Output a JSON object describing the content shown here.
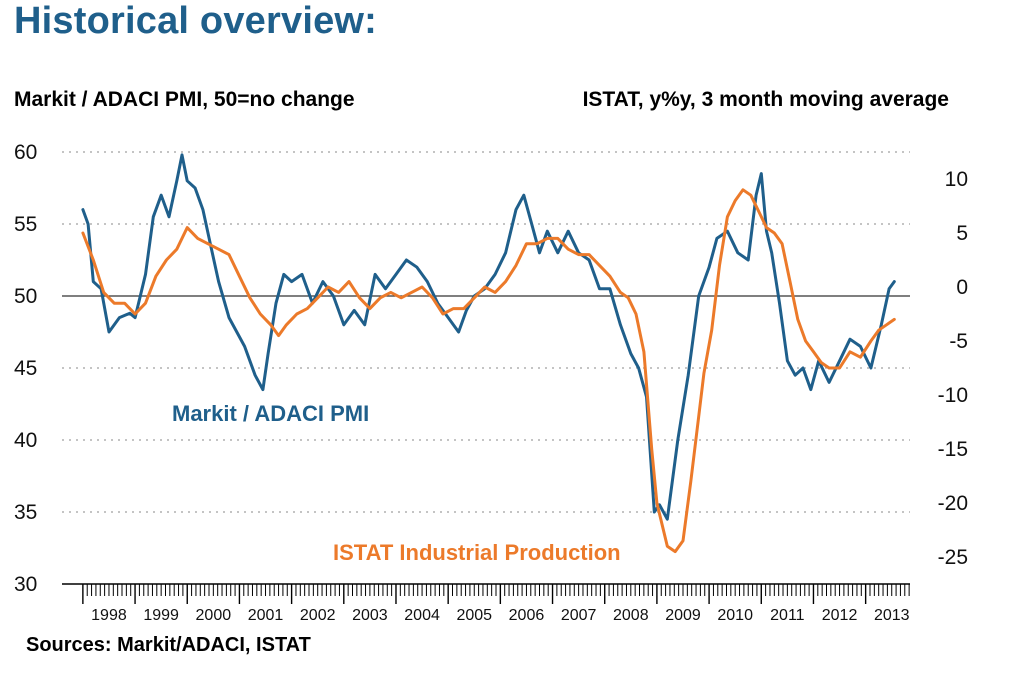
{
  "title": "Historical overview:",
  "source": "Sources: Markit/ADACI, ISTAT",
  "colors": {
    "title": "#1f5f8b",
    "pmi": "#1f5f8b",
    "istat": "#ec7a2a"
  },
  "chart_data": {
    "type": "line",
    "left_axis": {
      "label": "Markit / ADACI PMI, 50=no change",
      "ylim": [
        30,
        60
      ],
      "ticks": [
        "60",
        "55",
        "50",
        "45",
        "40",
        "35",
        "30"
      ]
    },
    "right_axis": {
      "label": "ISTAT, y%y, 3 month moving average",
      "ylim": [
        -27.5,
        12.5
      ],
      "ticks": [
        "10",
        "5",
        "0",
        "-5",
        "-10",
        "-15",
        "-20",
        "-25"
      ]
    },
    "x_labels": [
      "1998",
      "1999",
      "2000",
      "2001",
      "2002",
      "2003",
      "2004",
      "2005",
      "2006",
      "2007",
      "2008",
      "2009",
      "2010",
      "2011",
      "2012",
      "2013"
    ],
    "grid": "horizontal dotted",
    "reference_line": 50,
    "series": [
      {
        "name": "Markit / ADACI PMI",
        "axis": "left",
        "x": [
          1998.0,
          1998.1,
          1998.2,
          1998.35,
          1998.5,
          1998.7,
          1998.9,
          1999.0,
          1999.2,
          1999.35,
          1999.5,
          1999.65,
          1999.8,
          1999.9,
          2000.0,
          2000.15,
          2000.3,
          2000.45,
          2000.6,
          2000.8,
          2000.95,
          2001.1,
          2001.3,
          2001.45,
          2001.55,
          2001.7,
          2001.85,
          2002.0,
          2002.2,
          2002.4,
          2002.6,
          2002.8,
          2003.0,
          2003.2,
          2003.4,
          2003.6,
          2003.8,
          2004.0,
          2004.2,
          2004.4,
          2004.6,
          2004.8,
          2005.0,
          2005.2,
          2005.35,
          2005.5,
          2005.7,
          2005.9,
          2006.1,
          2006.3,
          2006.45,
          2006.6,
          2006.75,
          2006.9,
          2007.1,
          2007.3,
          2007.5,
          2007.7,
          2007.9,
          2008.1,
          2008.3,
          2008.5,
          2008.65,
          2008.8,
          2008.95,
          2009.05,
          2009.2,
          2009.4,
          2009.6,
          2009.8,
          2010.0,
          2010.15,
          2010.35,
          2010.55,
          2010.75,
          2010.9,
          2011.0,
          2011.1,
          2011.2,
          2011.35,
          2011.5,
          2011.65,
          2011.8,
          2011.95,
          2012.1,
          2012.3,
          2012.5,
          2012.7,
          2012.9,
          2013.1,
          2013.3,
          2013.45,
          2013.55
        ],
        "values": [
          56,
          55,
          51,
          50.5,
          47.5,
          48.5,
          48.8,
          48.5,
          51.5,
          55.5,
          57,
          55.5,
          58,
          59.8,
          58,
          57.5,
          56,
          53.5,
          51,
          48.5,
          47.5,
          46.5,
          44.5,
          43.5,
          46,
          49.5,
          51.5,
          51,
          51.5,
          49.5,
          51,
          50,
          48,
          49,
          48,
          51.5,
          50.5,
          51.5,
          52.5,
          52,
          51,
          49.5,
          48.5,
          47.5,
          49,
          50,
          50.5,
          51.5,
          53,
          56,
          57,
          55,
          53,
          54.5,
          53,
          54.5,
          53,
          52.5,
          50.5,
          50.5,
          48,
          46,
          45,
          43,
          35,
          35.5,
          34.5,
          40,
          44.5,
          50,
          52,
          54,
          54.5,
          53,
          52.5,
          57,
          58.5,
          54.5,
          53,
          49.5,
          45.5,
          44.5,
          45,
          43.5,
          45.5,
          44,
          45.5,
          47,
          46.5,
          45,
          48,
          50.5,
          51
        ]
      },
      {
        "name": "ISTAT Industrial Production",
        "axis": "right",
        "x": [
          1998.0,
          1998.2,
          1998.4,
          1998.6,
          1998.8,
          1999.0,
          1999.2,
          1999.4,
          1999.6,
          1999.8,
          2000.0,
          2000.2,
          2000.4,
          2000.6,
          2000.8,
          2001.0,
          2001.2,
          2001.4,
          2001.6,
          2001.75,
          2001.9,
          2002.1,
          2002.3,
          2002.5,
          2002.7,
          2002.9,
          2003.1,
          2003.3,
          2003.5,
          2003.7,
          2003.9,
          2004.1,
          2004.3,
          2004.5,
          2004.7,
          2004.9,
          2005.1,
          2005.3,
          2005.5,
          2005.7,
          2005.9,
          2006.1,
          2006.3,
          2006.5,
          2006.7,
          2006.9,
          2007.1,
          2007.3,
          2007.5,
          2007.7,
          2007.9,
          2008.1,
          2008.3,
          2008.45,
          2008.6,
          2008.75,
          2008.9,
          2009.0,
          2009.1,
          2009.2,
          2009.35,
          2009.5,
          2009.65,
          2009.8,
          2009.9,
          2010.05,
          2010.2,
          2010.35,
          2010.5,
          2010.65,
          2010.8,
          2010.95,
          2011.1,
          2011.25,
          2011.4,
          2011.55,
          2011.7,
          2011.85,
          2012.0,
          2012.15,
          2012.3,
          2012.5,
          2012.7,
          2012.9,
          2013.1,
          2013.25,
          2013.4,
          2013.55
        ],
        "values": [
          5,
          2.5,
          -0.5,
          -1.5,
          -1.5,
          -2.5,
          -1.5,
          1,
          2.5,
          3.5,
          5.5,
          4.5,
          4,
          3.5,
          3,
          1,
          -1,
          -2.5,
          -3.5,
          -4.5,
          -3.5,
          -2.5,
          -2,
          -1,
          0,
          -0.5,
          0.5,
          -1,
          -2,
          -1,
          -0.5,
          -1,
          -0.5,
          0,
          -1,
          -2.5,
          -2,
          -2,
          -1,
          0,
          -0.5,
          0.5,
          2,
          4,
          4,
          4.5,
          4.5,
          3.5,
          3,
          3,
          2,
          1,
          -0.5,
          -1,
          -2.5,
          -6,
          -15,
          -20,
          -22,
          -24,
          -24.5,
          -23.5,
          -18,
          -12,
          -8,
          -4,
          2,
          6.5,
          8,
          9,
          8.5,
          7,
          5.5,
          5,
          4,
          0.5,
          -3,
          -5,
          -6,
          -7,
          -7.5,
          -7.5,
          -6,
          -6.5,
          -5,
          -4,
          -3.5,
          -3
        ]
      }
    ]
  }
}
